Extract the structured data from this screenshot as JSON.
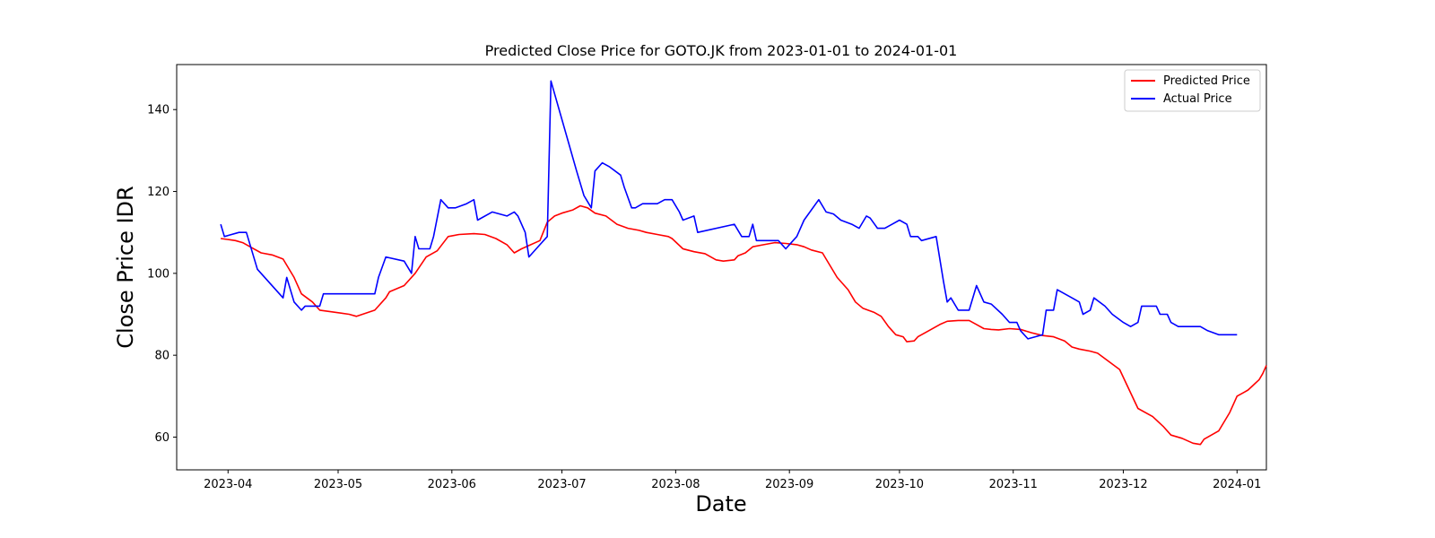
{
  "chart_data": {
    "type": "line",
    "title": "Predicted Close Price for GOTO.JK from 2023-01-01 to 2024-01-01",
    "xlabel": "Date",
    "ylabel": "Close Price IDR",
    "xlim": [
      "2023-03-18",
      "2024-01-09"
    ],
    "ylim": [
      52,
      151
    ],
    "x_ticks": [
      "2023-04-01",
      "2023-05-01",
      "2023-06-01",
      "2023-07-01",
      "2023-08-01",
      "2023-09-01",
      "2023-10-01",
      "2023-11-01",
      "2023-12-01",
      "2024-01-01"
    ],
    "x_tick_labels": [
      "2023-04",
      "2023-05",
      "2023-06",
      "2023-07",
      "2023-08",
      "2023-09",
      "2023-10",
      "2023-11",
      "2023-12",
      "2024-01"
    ],
    "y_ticks": [
      60,
      80,
      100,
      120,
      140
    ],
    "grid": false,
    "legend_position": "top-right",
    "series": [
      {
        "name": "Predicted Price",
        "color": "#ff0000",
        "points": [
          [
            "2023-03-30",
            108.5
          ],
          [
            "2023-04-03",
            108
          ],
          [
            "2023-04-05",
            107.5
          ],
          [
            "2023-04-07",
            106.5
          ],
          [
            "2023-04-10",
            105
          ],
          [
            "2023-04-13",
            104.5
          ],
          [
            "2023-04-16",
            103.5
          ],
          [
            "2023-04-19",
            99
          ],
          [
            "2023-04-21",
            95
          ],
          [
            "2023-04-24",
            93
          ],
          [
            "2023-04-26",
            91
          ],
          [
            "2023-05-04",
            90
          ],
          [
            "2023-05-06",
            89.5
          ],
          [
            "2023-05-11",
            91
          ],
          [
            "2023-05-14",
            94
          ],
          [
            "2023-05-15",
            95.5
          ],
          [
            "2023-05-19",
            97
          ],
          [
            "2023-05-22",
            100
          ],
          [
            "2023-05-25",
            104
          ],
          [
            "2023-05-28",
            105.5
          ],
          [
            "2023-05-31",
            109
          ],
          [
            "2023-06-03",
            109.5
          ],
          [
            "2023-06-07",
            109.7
          ],
          [
            "2023-06-10",
            109.5
          ],
          [
            "2023-06-13",
            108.5
          ],
          [
            "2023-06-16",
            107
          ],
          [
            "2023-06-18",
            105
          ],
          [
            "2023-06-20",
            106
          ],
          [
            "2023-06-25",
            108
          ],
          [
            "2023-06-27",
            112.5
          ],
          [
            "2023-06-29",
            114
          ],
          [
            "2023-07-01",
            114.7
          ],
          [
            "2023-07-04",
            115.5
          ],
          [
            "2023-07-06",
            116.5
          ],
          [
            "2023-07-08",
            116
          ],
          [
            "2023-07-10",
            114.7
          ],
          [
            "2023-07-13",
            114
          ],
          [
            "2023-07-16",
            112
          ],
          [
            "2023-07-19",
            111
          ],
          [
            "2023-07-22",
            110.5
          ],
          [
            "2023-07-24",
            110
          ],
          [
            "2023-07-27",
            109.5
          ],
          [
            "2023-07-30",
            109
          ],
          [
            "2023-07-31",
            108.5
          ],
          [
            "2023-08-03",
            106
          ],
          [
            "2023-08-06",
            105.3
          ],
          [
            "2023-08-09",
            104.8
          ],
          [
            "2023-08-12",
            103.3
          ],
          [
            "2023-08-14",
            103
          ],
          [
            "2023-08-17",
            103.3
          ],
          [
            "2023-08-18",
            104.3
          ],
          [
            "2023-08-20",
            105
          ],
          [
            "2023-08-22",
            106.5
          ],
          [
            "2023-08-25",
            107
          ],
          [
            "2023-08-28",
            107.5
          ],
          [
            "2023-08-31",
            107.3
          ],
          [
            "2023-09-03",
            107
          ],
          [
            "2023-09-05",
            106.5
          ],
          [
            "2023-09-07",
            105.7
          ],
          [
            "2023-09-10",
            105
          ],
          [
            "2023-09-11",
            103.5
          ],
          [
            "2023-09-14",
            99
          ],
          [
            "2023-09-17",
            96
          ],
          [
            "2023-09-19",
            93
          ],
          [
            "2023-09-21",
            91.5
          ],
          [
            "2023-09-24",
            90.5
          ],
          [
            "2023-09-26",
            89.5
          ],
          [
            "2023-09-28",
            87
          ],
          [
            "2023-09-30",
            85
          ],
          [
            "2023-10-02",
            84.5
          ],
          [
            "2023-10-03",
            83.3
          ],
          [
            "2023-10-05",
            83.5
          ],
          [
            "2023-10-06",
            84.5
          ],
          [
            "2023-10-09",
            86
          ],
          [
            "2023-10-12",
            87.5
          ],
          [
            "2023-10-14",
            88.3
          ],
          [
            "2023-10-17",
            88.5
          ],
          [
            "2023-10-20",
            88.5
          ],
          [
            "2023-10-22",
            87.5
          ],
          [
            "2023-10-24",
            86.5
          ],
          [
            "2023-10-26",
            86.3
          ],
          [
            "2023-10-28",
            86.2
          ],
          [
            "2023-10-31",
            86.5
          ],
          [
            "2023-11-03",
            86.3
          ],
          [
            "2023-11-06",
            85.5
          ],
          [
            "2023-11-09",
            84.8
          ],
          [
            "2023-11-12",
            84.5
          ],
          [
            "2023-11-15",
            83.5
          ],
          [
            "2023-11-17",
            82
          ],
          [
            "2023-11-19",
            81.5
          ],
          [
            "2023-11-22",
            81
          ],
          [
            "2023-11-24",
            80.5
          ],
          [
            "2023-11-27",
            78.5
          ],
          [
            "2023-11-30",
            76.5
          ],
          [
            "2023-12-05",
            67
          ],
          [
            "2023-12-09",
            65
          ],
          [
            "2023-12-12",
            62.5
          ],
          [
            "2023-12-14",
            60.5
          ],
          [
            "2023-12-17",
            59.7
          ],
          [
            "2023-12-20",
            58.5
          ],
          [
            "2023-12-22",
            58.2
          ],
          [
            "2023-12-23",
            59.5
          ],
          [
            "2023-12-27",
            61.5
          ],
          [
            "2023-12-30",
            66
          ],
          [
            "2024-01-01",
            70
          ],
          [
            "2024-01-03",
            71
          ],
          [
            "2024-01-04",
            71.5
          ],
          [
            "2024-01-07",
            74
          ],
          [
            "2024-01-08",
            75.5
          ],
          [
            "2024-01-09",
            77.5
          ]
        ]
      },
      {
        "name": "Actual Price",
        "color": "#0000ff",
        "points": [
          [
            "2023-03-30",
            112
          ],
          [
            "2023-03-31",
            109
          ],
          [
            "2023-04-04",
            110
          ],
          [
            "2023-04-06",
            110
          ],
          [
            "2023-04-09",
            101
          ],
          [
            "2023-04-16",
            94
          ],
          [
            "2023-04-17",
            99
          ],
          [
            "2023-04-19",
            93
          ],
          [
            "2023-04-21",
            91
          ],
          [
            "2023-04-22",
            92
          ],
          [
            "2023-04-26",
            92
          ],
          [
            "2023-04-27",
            95
          ],
          [
            "2023-05-11",
            95
          ],
          [
            "2023-05-12",
            99
          ],
          [
            "2023-05-14",
            104
          ],
          [
            "2023-05-19",
            103
          ],
          [
            "2023-05-21",
            100
          ],
          [
            "2023-05-22",
            109
          ],
          [
            "2023-05-23",
            106
          ],
          [
            "2023-05-26",
            106
          ],
          [
            "2023-05-27",
            109
          ],
          [
            "2023-05-29",
            118
          ],
          [
            "2023-05-31",
            116
          ],
          [
            "2023-06-02",
            116
          ],
          [
            "2023-06-05",
            117
          ],
          [
            "2023-06-07",
            118
          ],
          [
            "2023-06-08",
            113
          ],
          [
            "2023-06-12",
            115
          ],
          [
            "2023-06-14",
            114.5
          ],
          [
            "2023-06-16",
            114
          ],
          [
            "2023-06-18",
            115
          ],
          [
            "2023-06-19",
            114
          ],
          [
            "2023-06-21",
            110
          ],
          [
            "2023-06-22",
            104
          ],
          [
            "2023-06-25",
            107
          ],
          [
            "2023-06-27",
            109
          ],
          [
            "2023-06-28",
            147
          ],
          [
            "2023-07-05",
            125
          ],
          [
            "2023-07-07",
            119
          ],
          [
            "2023-07-09",
            116
          ],
          [
            "2023-07-10",
            125
          ],
          [
            "2023-07-12",
            127
          ],
          [
            "2023-07-14",
            126
          ],
          [
            "2023-07-17",
            124
          ],
          [
            "2023-07-18",
            121
          ],
          [
            "2023-07-20",
            116
          ],
          [
            "2023-07-21",
            116
          ],
          [
            "2023-07-23",
            117
          ],
          [
            "2023-07-26",
            117
          ],
          [
            "2023-07-27",
            117
          ],
          [
            "2023-07-29",
            118
          ],
          [
            "2023-07-31",
            118
          ],
          [
            "2023-08-02",
            115
          ],
          [
            "2023-08-03",
            113
          ],
          [
            "2023-08-06",
            114
          ],
          [
            "2023-08-07",
            110
          ],
          [
            "2023-08-17",
            112
          ],
          [
            "2023-08-19",
            109
          ],
          [
            "2023-08-21",
            109
          ],
          [
            "2023-08-22",
            112
          ],
          [
            "2023-08-23",
            108
          ],
          [
            "2023-08-29",
            108
          ],
          [
            "2023-08-31",
            106
          ],
          [
            "2023-09-02",
            108
          ],
          [
            "2023-09-03",
            109
          ],
          [
            "2023-09-05",
            113
          ],
          [
            "2023-09-09",
            118
          ],
          [
            "2023-09-11",
            115
          ],
          [
            "2023-09-13",
            114.5
          ],
          [
            "2023-09-15",
            113
          ],
          [
            "2023-09-18",
            112
          ],
          [
            "2023-09-20",
            111
          ],
          [
            "2023-09-22",
            114
          ],
          [
            "2023-09-23",
            113.5
          ],
          [
            "2023-09-25",
            111
          ],
          [
            "2023-09-27",
            111
          ],
          [
            "2023-09-29",
            112
          ],
          [
            "2023-10-01",
            113
          ],
          [
            "2023-10-03",
            112
          ],
          [
            "2023-10-04",
            109
          ],
          [
            "2023-10-06",
            109
          ],
          [
            "2023-10-07",
            108
          ],
          [
            "2023-10-11",
            109
          ],
          [
            "2023-10-13",
            98
          ],
          [
            "2023-10-14",
            93
          ],
          [
            "2023-10-15",
            94
          ],
          [
            "2023-10-17",
            91
          ],
          [
            "2023-10-20",
            91
          ],
          [
            "2023-10-22",
            97
          ],
          [
            "2023-10-24",
            93
          ],
          [
            "2023-10-26",
            92.5
          ],
          [
            "2023-10-29",
            90
          ],
          [
            "2023-10-31",
            88
          ],
          [
            "2023-11-02",
            88
          ],
          [
            "2023-11-03",
            86
          ],
          [
            "2023-11-05",
            84
          ],
          [
            "2023-11-07",
            84.5
          ],
          [
            "2023-11-09",
            85
          ],
          [
            "2023-11-10",
            91
          ],
          [
            "2023-11-12",
            91
          ],
          [
            "2023-11-13",
            96
          ],
          [
            "2023-11-17",
            94
          ],
          [
            "2023-11-19",
            93
          ],
          [
            "2023-11-20",
            90
          ],
          [
            "2023-11-22",
            91
          ],
          [
            "2023-11-23",
            94
          ],
          [
            "2023-11-26",
            92
          ],
          [
            "2023-11-28",
            90
          ],
          [
            "2023-12-01",
            88
          ],
          [
            "2023-12-03",
            87
          ],
          [
            "2023-12-05",
            88
          ],
          [
            "2023-12-06",
            92
          ],
          [
            "2023-12-10",
            92
          ],
          [
            "2023-12-11",
            90
          ],
          [
            "2023-12-13",
            90
          ],
          [
            "2023-12-14",
            88
          ],
          [
            "2023-12-16",
            87
          ],
          [
            "2023-12-22",
            87
          ],
          [
            "2023-12-24",
            86
          ],
          [
            "2023-12-27",
            85
          ],
          [
            "2024-01-01",
            85
          ]
        ]
      }
    ]
  }
}
